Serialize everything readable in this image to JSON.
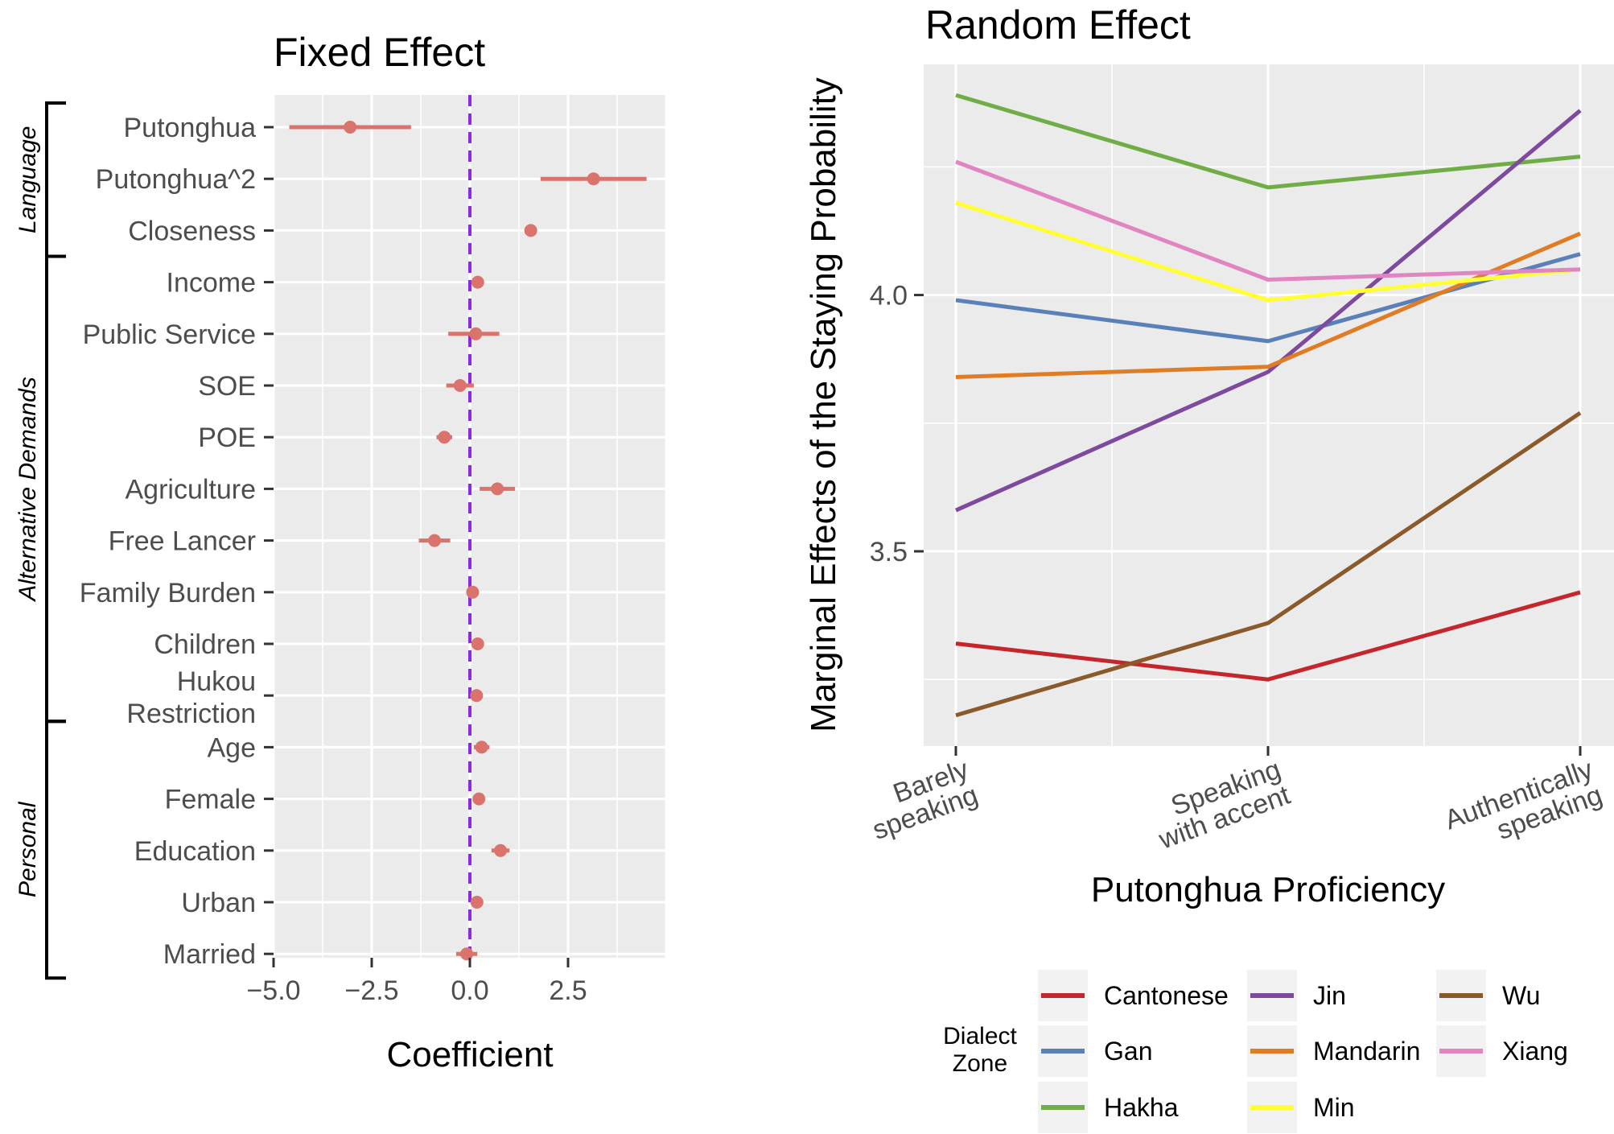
{
  "chart_data": [
    {
      "type": "dot-errorbar",
      "title": "Fixed Effect",
      "xlabel": "Coefficient",
      "ylabel": "",
      "xlim": [
        -5.0,
        5.0
      ],
      "xticks": [
        -5.0,
        -2.5,
        0.0,
        2.5
      ],
      "xtick_labels": [
        "−5.0",
        "−2.5",
        "0.0",
        "2.5"
      ],
      "reference_line": 0,
      "reference_line_color": "#8a2be2",
      "point_color": "#d9736b",
      "groups": [
        {
          "label": "Language",
          "categories": [
            "Putonghua",
            "Putonghua^2",
            "Closeness"
          ]
        },
        {
          "label": "Alternative Demands",
          "categories": [
            "Income",
            "Public Service",
            "SOE",
            "POE",
            "Agriculture",
            "Free Lancer",
            "Family Burden",
            "Children",
            "Hukou Restriction"
          ]
        },
        {
          "label": "Personal",
          "categories": [
            "Age",
            "Female",
            "Education",
            "Urban",
            "Married"
          ]
        }
      ],
      "categories": [
        [
          "Putonghua"
        ],
        [
          "Putonghua^2"
        ],
        [
          "Closeness"
        ],
        [
          "Income"
        ],
        [
          "Public Service"
        ],
        [
          "SOE"
        ],
        [
          "POE"
        ],
        [
          "Agriculture"
        ],
        [
          "Free Lancer"
        ],
        [
          "Family Burden"
        ],
        [
          "Children"
        ],
        [
          "Hukou",
          "Restriction"
        ],
        [
          "Age"
        ],
        [
          "Female"
        ],
        [
          "Education"
        ],
        [
          "Urban"
        ],
        [
          "Married"
        ]
      ],
      "estimates": [
        -3.05,
        3.15,
        1.55,
        0.2,
        0.15,
        -0.25,
        -0.65,
        0.7,
        -0.9,
        0.07,
        0.2,
        0.17,
        0.3,
        0.23,
        0.78,
        0.18,
        -0.08
      ],
      "lower": [
        -4.6,
        1.8,
        1.4,
        0.1,
        -0.55,
        -0.6,
        -0.85,
        0.25,
        -1.3,
        0.0,
        0.1,
        0.07,
        0.1,
        0.13,
        0.55,
        0.08,
        -0.35
      ],
      "upper": [
        -1.5,
        4.5,
        1.7,
        0.3,
        0.75,
        0.1,
        -0.45,
        1.15,
        -0.5,
        0.14,
        0.3,
        0.27,
        0.5,
        0.33,
        1.01,
        0.28,
        0.19
      ]
    },
    {
      "type": "line",
      "title": "Random Effect",
      "xlabel": "Putonghua Proficiency",
      "ylabel": "Marginal Effects of the Staying Probability",
      "categories": [
        [
          "Barely",
          "speaking"
        ],
        [
          "Speaking",
          "with accent"
        ],
        [
          "Authentically",
          "speaking"
        ]
      ],
      "ylim": [
        3.12,
        4.45
      ],
      "yticks": [
        3.5,
        4.0
      ],
      "ytick_labels": [
        "3.5",
        "4.0"
      ],
      "ygrid_minor": [
        3.25,
        3.75,
        4.25
      ],
      "legend_title": [
        "Dialect",
        "Zone"
      ],
      "legend_position": "bottom",
      "series": [
        {
          "name": "Cantonese",
          "color": "#c4262b",
          "values": [
            3.32,
            3.25,
            3.42
          ]
        },
        {
          "name": "Gan",
          "color": "#5a80b8",
          "values": [
            3.99,
            3.91,
            4.08
          ]
        },
        {
          "name": "Hakha",
          "color": "#70ad47",
          "values": [
            4.39,
            4.21,
            4.27
          ]
        },
        {
          "name": "Jin",
          "color": "#7d4a9e",
          "values": [
            3.58,
            3.85,
            4.36
          ]
        },
        {
          "name": "Mandarin",
          "color": "#e07d24",
          "values": [
            3.84,
            3.86,
            4.12
          ]
        },
        {
          "name": "Min",
          "color": "#ffff33",
          "values": [
            4.18,
            3.99,
            4.05
          ]
        },
        {
          "name": "Wu",
          "color": "#8b5a2b",
          "values": [
            3.18,
            3.36,
            3.77
          ]
        },
        {
          "name": "Xiang",
          "color": "#e085c2",
          "values": [
            4.26,
            4.03,
            4.05
          ]
        }
      ]
    }
  ]
}
